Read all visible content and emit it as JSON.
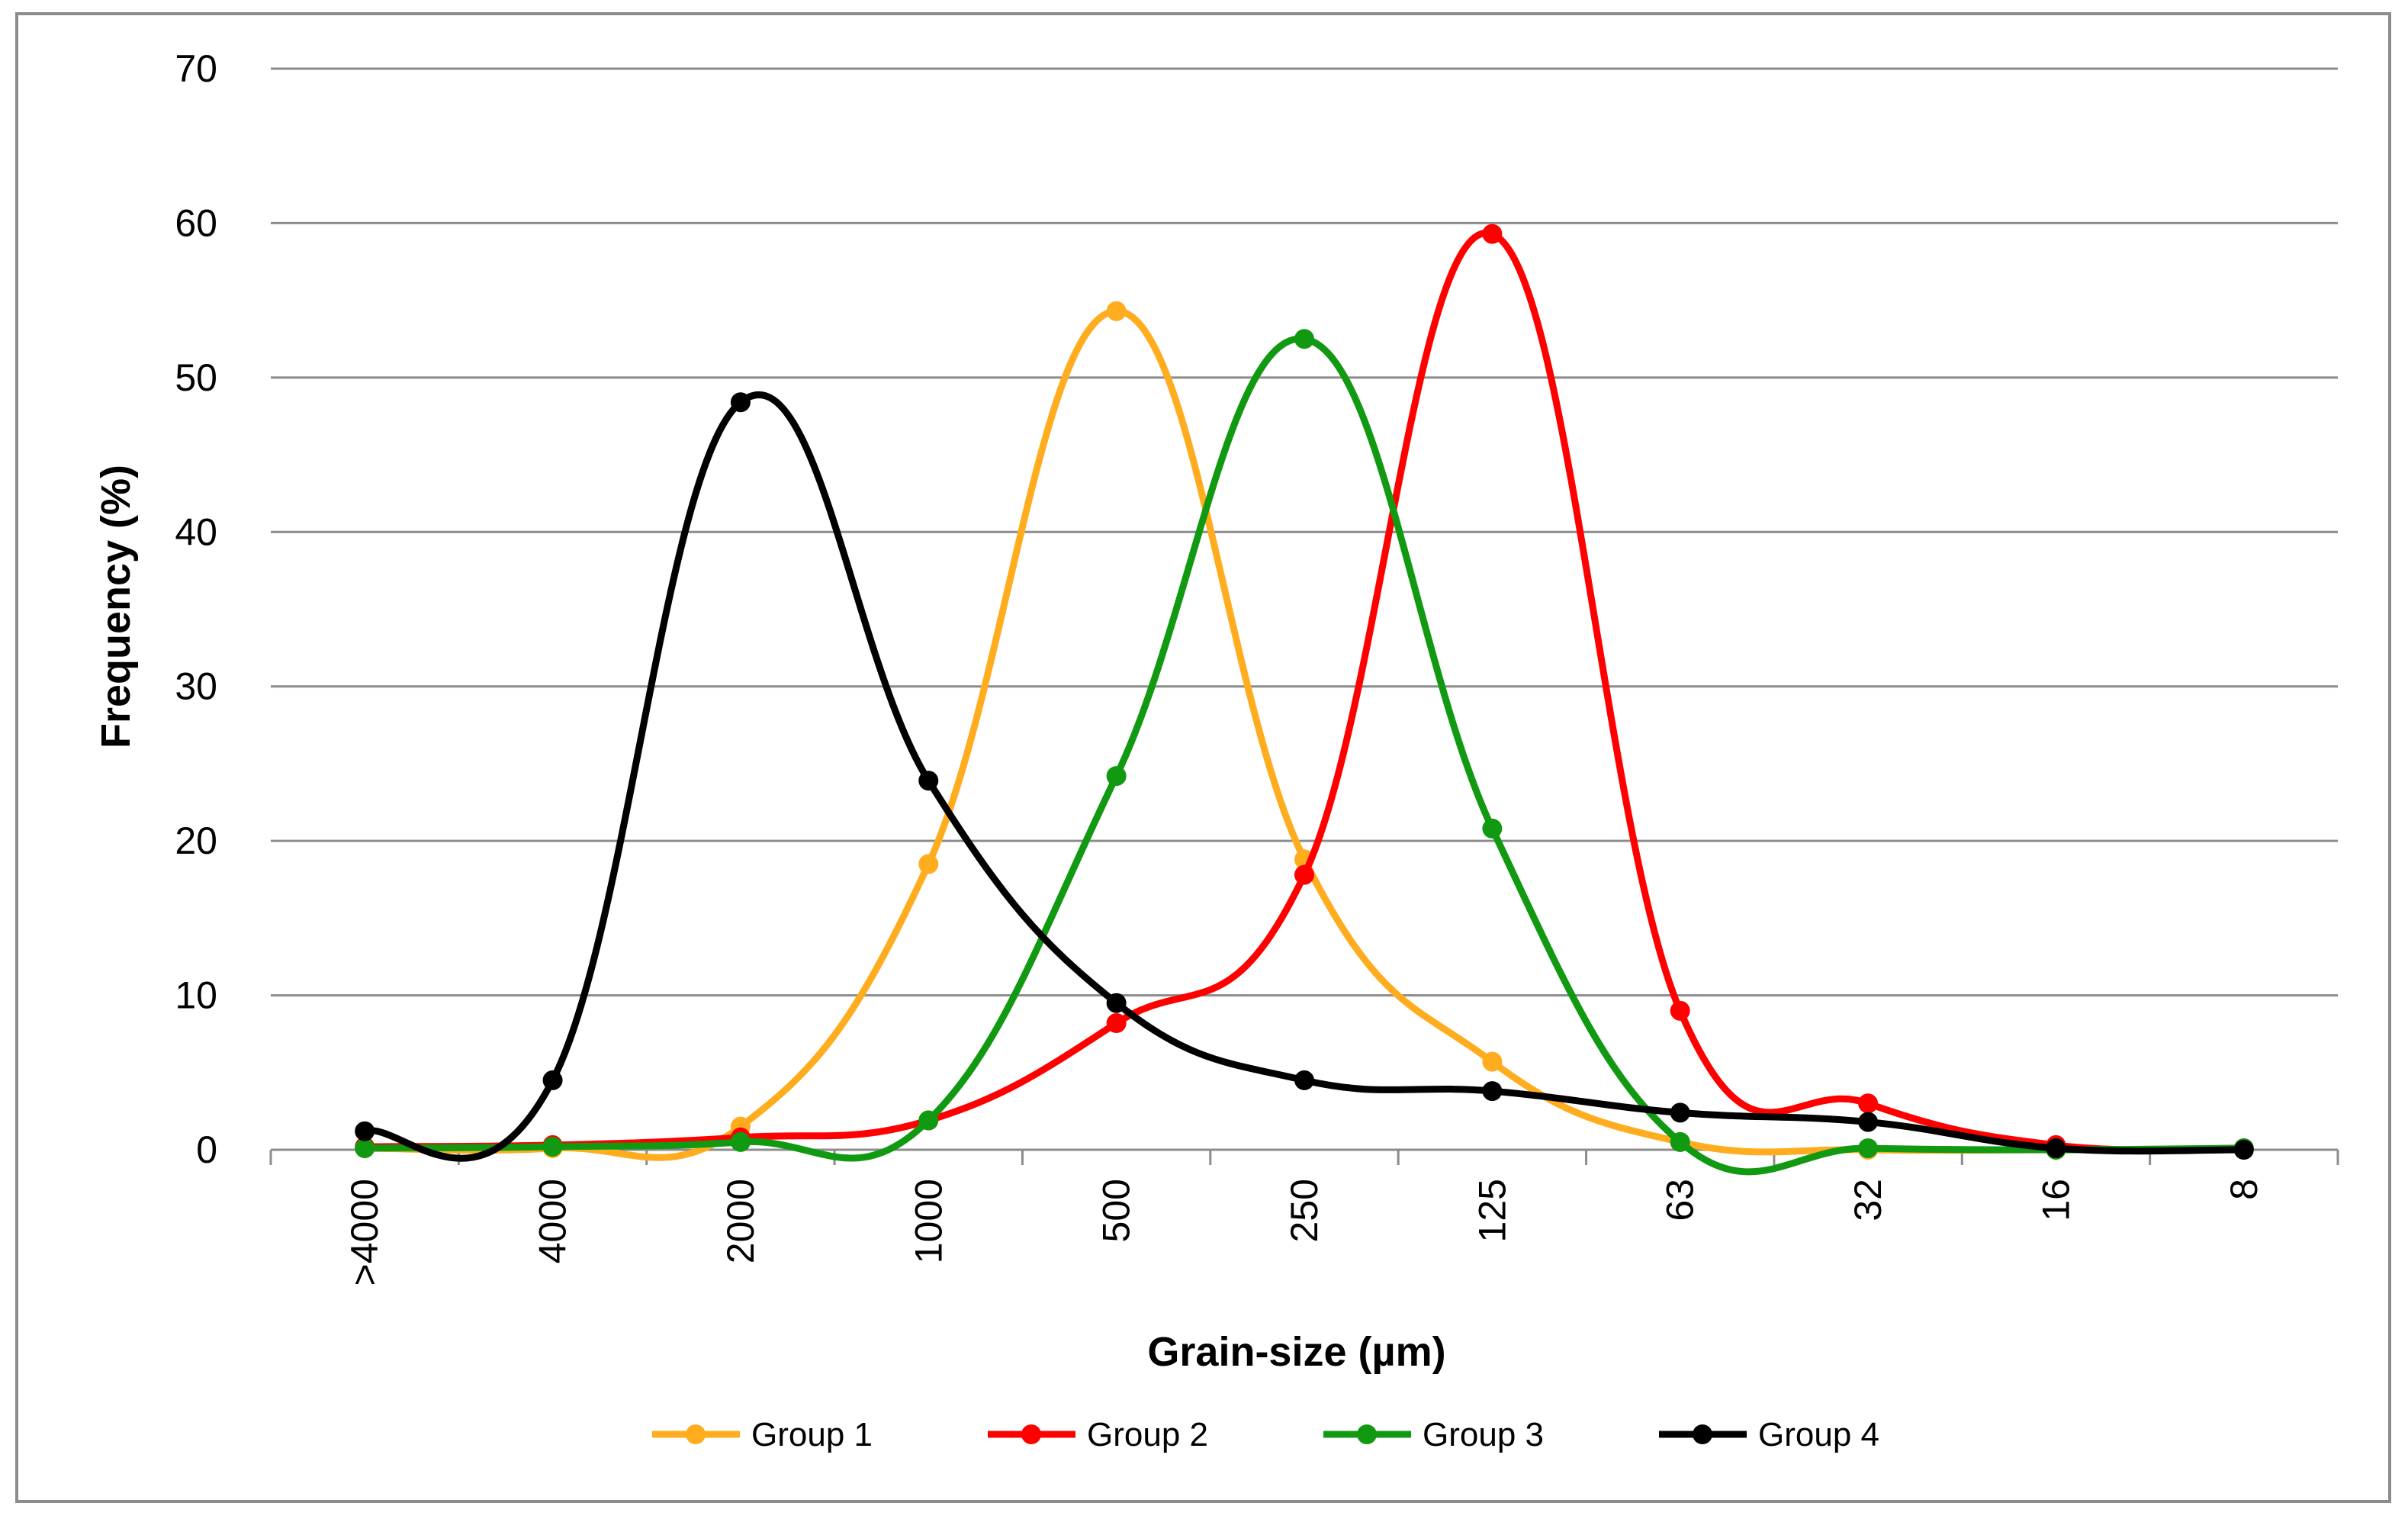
{
  "chart_data": {
    "type": "line",
    "title": "",
    "xlabel": "Grain-size (µm)",
    "ylabel": "Frequency (%)",
    "categories": [
      ">4000",
      "4000",
      "2000",
      "1000",
      "500",
      "250",
      "125",
      "63",
      "32",
      "16",
      "8"
    ],
    "ylim": [
      0,
      70
    ],
    "yticks": [
      0,
      10,
      20,
      30,
      40,
      50,
      60,
      70
    ],
    "grid": true,
    "legend_position": "bottom",
    "smooth": true,
    "series": [
      {
        "name": "Group 1",
        "color": "#ffad1f",
        "values": [
          0.1,
          0.1,
          1.5,
          18.5,
          54.3,
          18.8,
          5.7,
          0.5,
          0.0,
          0.0,
          0.0
        ]
      },
      {
        "name": "Group 2",
        "color": "#ff0000",
        "values": [
          0.2,
          0.3,
          0.8,
          1.9,
          8.2,
          17.8,
          59.3,
          9.0,
          3.0,
          0.3,
          0.1
        ]
      },
      {
        "name": "Group 3",
        "color": "#119911",
        "values": [
          0.1,
          0.2,
          0.5,
          1.9,
          24.2,
          52.5,
          20.8,
          0.5,
          0.1,
          0.0,
          0.1
        ]
      },
      {
        "name": "Group 4",
        "color": "#000000",
        "values": [
          1.2,
          4.5,
          48.4,
          23.9,
          9.5,
          4.5,
          3.8,
          2.4,
          1.8,
          0.1,
          0.0
        ]
      }
    ]
  }
}
